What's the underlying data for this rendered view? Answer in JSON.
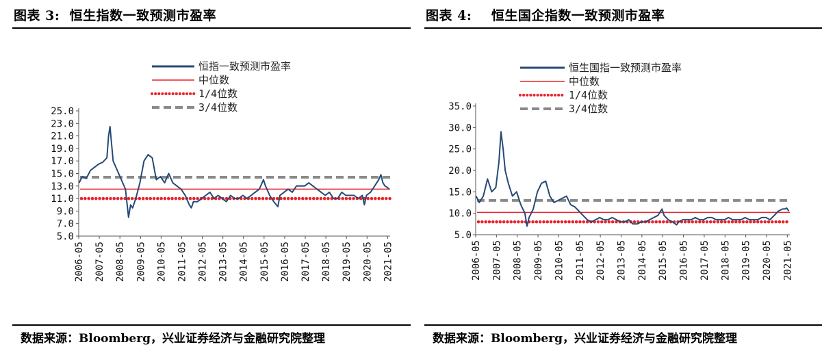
{
  "colors": {
    "series": "#264a75",
    "median": "#e8242b",
    "q1": "#e8242b",
    "q3": "#8a8a8a"
  },
  "chart_data": [
    {
      "type": "line",
      "figure_label": "图表 3:",
      "title": "恒生指数一致预测市盈率",
      "source": "数据来源：Bloomberg，兴业证券经济与金融研究院整理",
      "legend": {
        "series": "恒指一致预测市盈率",
        "median": "中位数",
        "q1": "1/4位数",
        "q3": "3/4位数"
      },
      "y_ticks": [
        "25.0",
        "23.0",
        "21.0",
        "19.0",
        "17.0",
        "15.0",
        "13.0",
        "11.0",
        "9.0",
        "7.0",
        "5.0"
      ],
      "ylim": [
        5,
        25
      ],
      "x_ticks": [
        "2006-05",
        "2007-05",
        "2008-05",
        "2009-05",
        "2010-05",
        "2011-05",
        "2012-05",
        "2013-05",
        "2014-05",
        "2015-05",
        "2016-05",
        "2017-05",
        "2018-05",
        "2019-05",
        "2020-05",
        "2021-05"
      ],
      "x_start": 2006.33,
      "x_end": 2021.45,
      "median": 12.5,
      "q1": 11.0,
      "q3": 14.4,
      "series": [
        {
          "name": "恒指一致预测市盈率",
          "x": [
            2006.35,
            2006.5,
            2006.7,
            2006.9,
            2007.1,
            2007.3,
            2007.5,
            2007.7,
            2007.78,
            2007.85,
            2007.92,
            2008.0,
            2008.2,
            2008.4,
            2008.6,
            2008.75,
            2008.85,
            2008.95,
            2009.1,
            2009.3,
            2009.5,
            2009.7,
            2009.9,
            2010.1,
            2010.3,
            2010.5,
            2010.7,
            2010.9,
            2011.1,
            2011.3,
            2011.5,
            2011.7,
            2011.8,
            2011.9,
            2012.1,
            2012.3,
            2012.5,
            2012.7,
            2012.9,
            2013.1,
            2013.3,
            2013.5,
            2013.7,
            2013.9,
            2014.1,
            2014.3,
            2014.5,
            2014.7,
            2014.9,
            2015.1,
            2015.3,
            2015.4,
            2015.6,
            2015.8,
            2016.0,
            2016.1,
            2016.3,
            2016.5,
            2016.7,
            2016.9,
            2017.1,
            2017.3,
            2017.5,
            2017.7,
            2017.9,
            2018.1,
            2018.3,
            2018.5,
            2018.7,
            2018.9,
            2019.1,
            2019.3,
            2019.5,
            2019.7,
            2019.9,
            2020.1,
            2020.2,
            2020.3,
            2020.5,
            2020.7,
            2020.9,
            2021.0,
            2021.1,
            2021.2,
            2021.3,
            2021.4
          ],
          "y": [
            13.5,
            14.5,
            14.2,
            15.5,
            16.0,
            16.5,
            16.8,
            17.5,
            21.0,
            22.5,
            20.0,
            17.0,
            15.5,
            14.0,
            12.5,
            8.0,
            10.0,
            9.5,
            11.0,
            13.5,
            17.0,
            18.0,
            17.5,
            14.0,
            14.5,
            13.5,
            15.0,
            13.5,
            13.0,
            12.5,
            11.5,
            10.0,
            9.5,
            10.5,
            10.5,
            11.0,
            11.5,
            12.0,
            11.0,
            11.5,
            11.0,
            10.5,
            11.5,
            11.0,
            11.0,
            11.5,
            11.0,
            11.5,
            12.0,
            12.5,
            14.0,
            13.0,
            11.5,
            10.5,
            9.7,
            11.5,
            12.0,
            12.5,
            12.0,
            13.0,
            13.0,
            13.0,
            13.5,
            13.0,
            12.5,
            12.0,
            11.5,
            12.0,
            11.0,
            11.0,
            12.0,
            11.5,
            11.5,
            11.5,
            11.0,
            11.5,
            10.0,
            11.5,
            12.0,
            13.0,
            14.0,
            14.8,
            13.5,
            13.0,
            12.8,
            12.5
          ]
        }
      ]
    },
    {
      "type": "line",
      "figure_label": "图表 4:",
      "title": "恒生国企指数一致预测市盈率",
      "source": "数据来源：Bloomberg，兴业证券经济与金融研究院整理",
      "legend": {
        "series": "恒生国指一致预测市盈率",
        "median": "中位数",
        "q1": "1/4位数",
        "q3": "3/4位数"
      },
      "y_ticks": [
        "35.0",
        "30.0",
        "25.0",
        "20.0",
        "15.0",
        "10.0",
        "5.0"
      ],
      "ylim": [
        5,
        35
      ],
      "x_ticks": [
        "2006-05",
        "2007-05",
        "2008-05",
        "2009-05",
        "2010-05",
        "2011-05",
        "2012-05",
        "2013-05",
        "2014-05",
        "2015-05",
        "2016-05",
        "2017-05",
        "2018-05",
        "2019-05",
        "2020-05",
        "2021-05"
      ],
      "x_start": 2006.33,
      "x_end": 2021.45,
      "median": 10.2,
      "q1": 8.0,
      "q3": 13.0,
      "series": [
        {
          "name": "恒生国指一致预测市盈率",
          "x": [
            2006.35,
            2006.5,
            2006.7,
            2006.9,
            2007.1,
            2007.3,
            2007.45,
            2007.55,
            2007.65,
            2007.75,
            2007.9,
            2008.1,
            2008.3,
            2008.5,
            2008.7,
            2008.8,
            2008.9,
            2009.1,
            2009.3,
            2009.5,
            2009.7,
            2009.9,
            2010.1,
            2010.3,
            2010.5,
            2010.7,
            2010.9,
            2011.1,
            2011.3,
            2011.5,
            2011.7,
            2011.9,
            2012.1,
            2012.3,
            2012.5,
            2012.7,
            2012.9,
            2013.1,
            2013.3,
            2013.5,
            2013.7,
            2013.9,
            2014.1,
            2014.3,
            2014.5,
            2014.7,
            2014.9,
            2015.1,
            2015.3,
            2015.4,
            2015.6,
            2015.8,
            2016.0,
            2016.1,
            2016.3,
            2016.5,
            2016.7,
            2016.9,
            2017.1,
            2017.3,
            2017.5,
            2017.7,
            2017.9,
            2018.1,
            2018.3,
            2018.5,
            2018.7,
            2018.9,
            2019.1,
            2019.3,
            2019.5,
            2019.7,
            2019.9,
            2020.1,
            2020.3,
            2020.5,
            2020.7,
            2020.9,
            2021.1,
            2021.2,
            2021.3,
            2021.4
          ],
          "y": [
            14.0,
            12.5,
            14.0,
            18.0,
            15.0,
            16.0,
            22.0,
            29.0,
            25.0,
            20.0,
            17.0,
            14.0,
            15.0,
            12.0,
            10.0,
            7.0,
            9.0,
            11.0,
            15.0,
            17.0,
            17.5,
            14.0,
            12.5,
            13.0,
            13.5,
            14.0,
            12.0,
            11.5,
            10.5,
            9.5,
            8.5,
            8.0,
            8.5,
            9.0,
            8.5,
            8.5,
            9.0,
            8.5,
            8.0,
            8.0,
            8.5,
            7.5,
            7.5,
            8.0,
            8.0,
            8.5,
            9.0,
            9.5,
            11.0,
            9.5,
            8.5,
            8.0,
            7.3,
            8.0,
            8.5,
            8.5,
            8.5,
            9.0,
            8.5,
            8.5,
            9.0,
            9.0,
            8.5,
            8.5,
            8.5,
            9.0,
            8.5,
            8.5,
            8.5,
            9.0,
            8.5,
            8.5,
            8.5,
            9.0,
            9.0,
            8.5,
            9.5,
            10.5,
            11.0,
            11.0,
            11.2,
            10.5
          ]
        }
      ]
    }
  ]
}
